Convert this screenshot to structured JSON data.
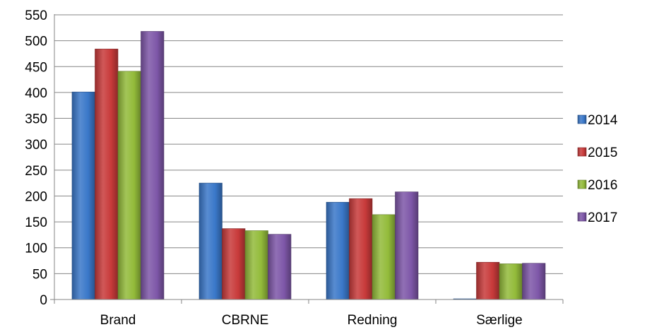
{
  "chart_data": {
    "type": "bar",
    "categories": [
      "Brand",
      "CBRNE",
      "Redning",
      "Særlige"
    ],
    "series": [
      {
        "name": "2014",
        "color": "#3A78C9",
        "values": [
          401,
          225,
          188,
          1
        ]
      },
      {
        "name": "2015",
        "color": "#C83A3A",
        "values": [
          484,
          137,
          195,
          72
        ]
      },
      {
        "name": "2016",
        "color": "#93BB3A",
        "values": [
          441,
          133,
          164,
          69
        ]
      },
      {
        "name": "2017",
        "color": "#7E57A8",
        "values": [
          518,
          126,
          208,
          70
        ]
      }
    ],
    "ylim": [
      0,
      550
    ],
    "yticks": [
      "0",
      "50",
      "100",
      "150",
      "200",
      "250",
      "300",
      "350",
      "400",
      "450",
      "500",
      "550"
    ],
    "grid": true,
    "legend_position": "right"
  }
}
